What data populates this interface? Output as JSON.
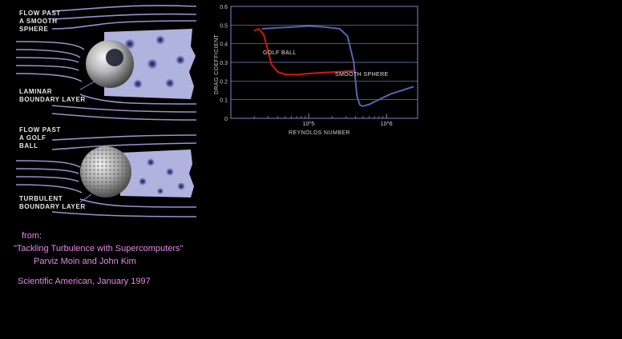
{
  "panel_top": {
    "label_flow": [
      "FLOW PAST",
      "A SMOOTH",
      "SPHERE"
    ],
    "label_layer": [
      "LAMINAR",
      "BOUNDARY LAYER"
    ]
  },
  "panel_bottom": {
    "label_flow": [
      "FLOW PAST",
      "A GOLF",
      "BALL"
    ],
    "label_layer": [
      "TURBULENT",
      "BOUNDARY LAYER"
    ]
  },
  "credits": {
    "from": "from:",
    "title": "\"Tackling Turbulence with Supercomputers\"",
    "authors": "Parviz Moin and John Kim",
    "source": "Scientific American, January 1997"
  },
  "colors": {
    "background": "#000000",
    "streamline": "#9a8fcf",
    "wake": "#bfc2f0",
    "golf_curve": "#e01010",
    "smooth_curve": "#5566b0",
    "credit_text": "#e487e6"
  },
  "chart_data": {
    "type": "line",
    "xlabel": "REYNOLDS NUMBER",
    "ylabel": "DRAG COEFFICIENT",
    "yticks": [
      "0.6",
      "0.5",
      "0.4",
      "0.3",
      "0.2",
      "0.1",
      "0"
    ],
    "xticks": [
      "10^5",
      "10^6"
    ],
    "ylim": [
      0,
      0.6
    ],
    "xlim": [
      4,
      6.4
    ],
    "grid": true,
    "series": [
      {
        "name": "GOLF BALL",
        "color": "#e01010",
        "x": [
          4.3,
          4.36,
          4.42,
          4.48,
          4.52,
          4.6,
          4.7,
          4.85,
          5.0,
          5.2,
          5.4,
          5.6
        ],
        "y": [
          0.47,
          0.48,
          0.45,
          0.36,
          0.29,
          0.25,
          0.235,
          0.235,
          0.24,
          0.245,
          0.25,
          0.255
        ]
      },
      {
        "name": "SMOOTH SPHERE",
        "color": "#5566b0",
        "x": [
          4.4,
          4.6,
          4.8,
          5.0,
          5.2,
          5.4,
          5.5,
          5.58,
          5.62,
          5.66,
          5.7,
          5.78,
          5.9,
          6.05,
          6.2,
          6.35
        ],
        "y": [
          0.48,
          0.485,
          0.49,
          0.495,
          0.49,
          0.48,
          0.44,
          0.3,
          0.12,
          0.07,
          0.065,
          0.075,
          0.1,
          0.13,
          0.15,
          0.17
        ]
      }
    ]
  }
}
